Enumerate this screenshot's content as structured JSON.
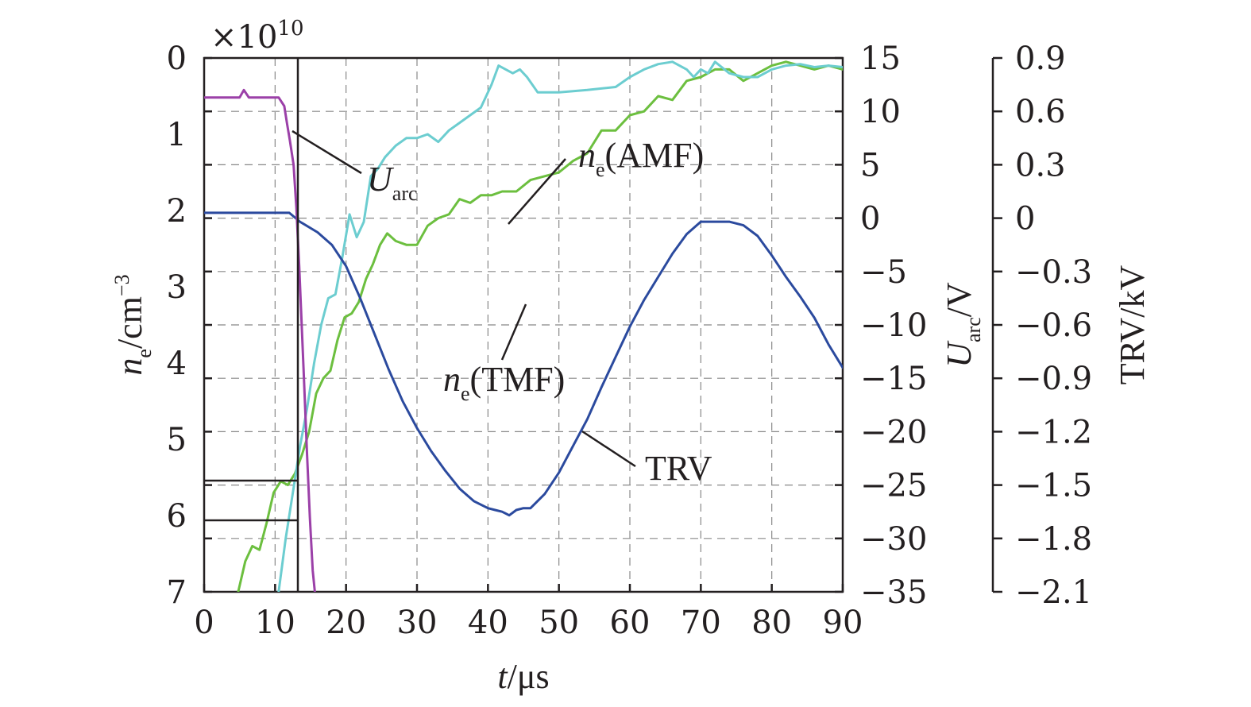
{
  "chart_data": {
    "type": "line",
    "title": "",
    "xlabel": {
      "main": "t",
      "unit": "/μs"
    },
    "x_ticks": [
      "0",
      "10",
      "20",
      "30",
      "40",
      "50",
      "60",
      "70",
      "80",
      "90"
    ],
    "xlim": [
      0,
      90
    ],
    "left_axis": {
      "label_main": "n",
      "label_sub": "e",
      "label_unit": "/cm",
      "label_sup": "−3",
      "multiplier": "×10",
      "multiplier_exp": "10",
      "ylim_top": 0,
      "ylim_bottom": 7,
      "ticks": [
        "0",
        "1",
        "2",
        "3",
        "4",
        "5",
        "6",
        "7"
      ]
    },
    "uarc_axis": {
      "label_main": "U",
      "label_sub": "arc",
      "label_unit": "/V",
      "ylim": [
        -35,
        15
      ],
      "ticks": [
        "15",
        "10",
        "5",
        "0",
        "−5",
        "−10",
        "−15",
        "−20",
        "−25",
        "−30",
        "−35"
      ]
    },
    "trv_axis": {
      "label": "TRV/kV",
      "ylim": [
        -2.1,
        0.9
      ],
      "ticks": [
        "0.9",
        "0.6",
        "0.3",
        "0",
        "−0.3",
        "−0.6",
        "−0.9",
        "−1.2",
        "−1.5",
        "−1.8",
        "−2.1"
      ]
    },
    "grid": true,
    "colors": {
      "uarc": "#9b40a8",
      "trv": "#2b4a9e",
      "amf": "#6ccdd0",
      "tmf": "#6cbf3f",
      "ink": "#231f20"
    },
    "annotations": {
      "uarc": {
        "main": "U",
        "sub": "arc"
      },
      "amf": {
        "main": "n",
        "sub": "e",
        "rest": "(AMF)"
      },
      "tmf": {
        "main": "n",
        "sub": "e",
        "rest": "(TMF)"
      },
      "trv": {
        "text": "TRV"
      }
    },
    "series": [
      {
        "key": "uarc",
        "axis": "uarc",
        "x": [
          0,
          5.0,
          5.6,
          6.3,
          10.5,
          11.3,
          11.7,
          12.1,
          12.6,
          13.0,
          13.4,
          14.0,
          14.5,
          14.9,
          15.3,
          15.6
        ],
        "y": [
          11.3,
          11.3,
          12.0,
          11.3,
          11.3,
          10.5,
          8.8,
          7.2,
          5.0,
          1.0,
          -4.5,
          -14.0,
          -22.0,
          -28.0,
          -33.0,
          -35.0
        ]
      },
      {
        "key": "trv",
        "axis": "trv",
        "x": [
          0,
          6,
          12,
          13.5,
          16,
          18,
          20,
          22,
          24,
          26,
          28,
          30,
          32,
          34,
          36,
          38,
          40,
          41,
          42,
          43,
          44,
          45,
          46,
          48,
          50,
          52,
          54,
          56,
          58,
          60,
          62,
          64,
          66,
          68,
          70,
          72,
          74,
          76,
          78,
          80,
          82,
          84,
          86,
          88,
          90
        ],
        "y": [
          0.03,
          0.03,
          0.03,
          -0.02,
          -0.08,
          -0.15,
          -0.27,
          -0.45,
          -0.65,
          -0.85,
          -1.03,
          -1.18,
          -1.31,
          -1.42,
          -1.52,
          -1.59,
          -1.63,
          -1.64,
          -1.65,
          -1.67,
          -1.64,
          -1.63,
          -1.63,
          -1.55,
          -1.43,
          -1.28,
          -1.13,
          -0.95,
          -0.78,
          -0.61,
          -0.46,
          -0.33,
          -0.2,
          -0.09,
          -0.02,
          -0.02,
          -0.02,
          -0.04,
          -0.1,
          -0.21,
          -0.33,
          -0.44,
          -0.56,
          -0.71,
          -0.84
        ]
      },
      {
        "key": "amf",
        "axis": "left",
        "x": [
          10.5,
          11.5,
          12.5,
          13.5,
          14.5,
          15.5,
          16.5,
          17.5,
          18.5,
          19.5,
          20.5,
          21.5,
          22.5,
          23.5,
          24.5,
          25.5,
          27,
          28.5,
          30,
          31.5,
          33,
          34.5,
          36,
          37.5,
          39,
          40.5,
          41.5,
          42.5,
          43.5,
          44.5,
          45.5,
          47,
          50,
          54,
          58,
          60,
          62,
          64,
          66,
          68,
          69,
          70,
          71,
          72,
          74,
          76,
          78,
          80,
          82,
          84,
          86,
          88,
          90
        ],
        "y": [
          7.0,
          6.3,
          5.7,
          5.1,
          4.6,
          4.0,
          3.5,
          3.15,
          3.1,
          2.6,
          2.05,
          2.35,
          2.15,
          1.55,
          1.45,
          1.3,
          1.15,
          1.05,
          1.05,
          1.0,
          1.1,
          0.95,
          0.85,
          0.75,
          0.65,
          0.35,
          0.1,
          0.15,
          0.2,
          0.15,
          0.25,
          0.45,
          0.45,
          0.42,
          0.38,
          0.25,
          0.15,
          0.08,
          0.05,
          0.15,
          0.25,
          0.15,
          0.2,
          0.05,
          0.2,
          0.25,
          0.25,
          0.15,
          0.1,
          0.08,
          0.12,
          0.1,
          0.12
        ]
      },
      {
        "key": "tmf",
        "axis": "left",
        "x": [
          4.8,
          5.8,
          6.8,
          7.8,
          8.8,
          9.8,
          10.8,
          11.8,
          12.8,
          13.8,
          14.8,
          15.8,
          16.8,
          17.8,
          18.8,
          19.8,
          20.8,
          21.8,
          22.8,
          23.8,
          24.8,
          25.8,
          27,
          28.5,
          30,
          31.5,
          33,
          34.5,
          36,
          37.5,
          39,
          40.5,
          42,
          44,
          46,
          48,
          50,
          52,
          54,
          56,
          58,
          60,
          62,
          64,
          66,
          68,
          70,
          72,
          74,
          76,
          78,
          80,
          82,
          84,
          86,
          88,
          90
        ],
        "y": [
          7.0,
          6.6,
          6.4,
          6.45,
          6.1,
          5.7,
          5.55,
          5.6,
          5.45,
          5.2,
          4.9,
          4.4,
          4.2,
          4.1,
          3.7,
          3.4,
          3.35,
          3.2,
          2.9,
          2.7,
          2.45,
          2.3,
          2.4,
          2.45,
          2.45,
          2.2,
          2.1,
          2.05,
          1.85,
          1.9,
          1.8,
          1.8,
          1.75,
          1.75,
          1.6,
          1.55,
          1.5,
          1.35,
          1.25,
          0.95,
          0.95,
          0.75,
          0.7,
          0.5,
          0.55,
          0.3,
          0.25,
          0.15,
          0.15,
          0.3,
          0.2,
          0.1,
          0.05,
          0.1,
          0.15,
          0.1,
          0.15
        ]
      }
    ]
  }
}
